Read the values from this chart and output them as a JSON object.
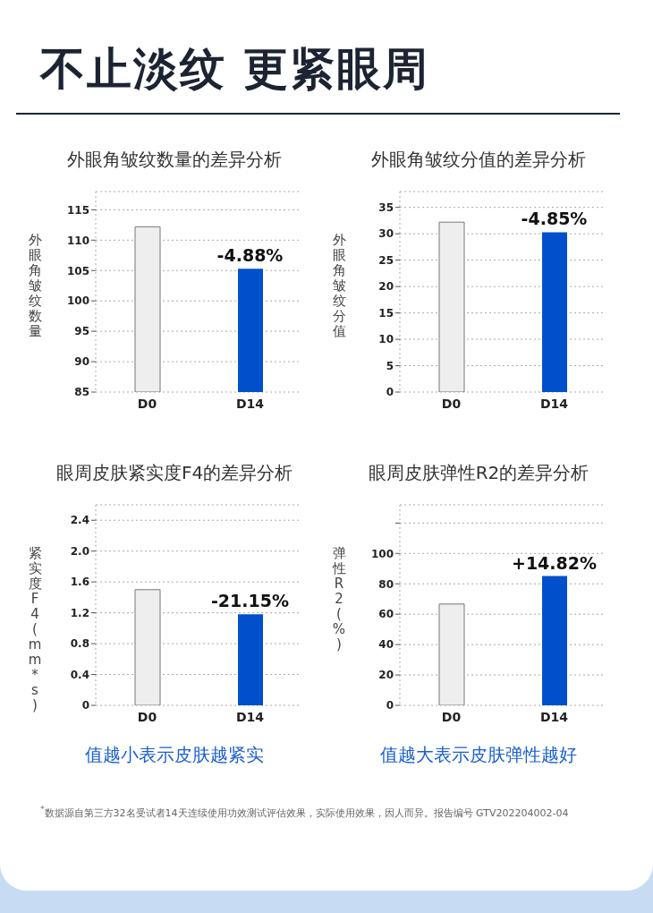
{
  "chart_data": [
    {
      "type": "other",
      "title": "不止淡纹 更紧眼周"
    },
    {
      "type": "bar",
      "title": "外眼角皱纹数量的差异分析",
      "ylabel": "外眼角皱纹数量",
      "categories": [
        "D0",
        "D14"
      ],
      "values": [
        112.2,
        105.3
      ],
      "colors": [
        "#eeeeee",
        "#0050cc"
      ],
      "annotations": [
        {
          "text": "-4.88%",
          "x": "D14",
          "y": 105.3
        }
      ],
      "ylim": [
        85,
        118
      ],
      "yticks": [
        85,
        90,
        95,
        100,
        105,
        110,
        115
      ],
      "grid": "y"
    },
    {
      "type": "bar",
      "title": "外眼角皱纹分值的差异分析",
      "ylabel": "外眼角皱纹分值",
      "categories": [
        "D0",
        "D14"
      ],
      "values": [
        32.2,
        30.3
      ],
      "colors": [
        "#eeeeee",
        "#0050cc"
      ],
      "annotations": [
        {
          "text": "-4.85%",
          "x": "D14",
          "y": 30.3
        }
      ],
      "ylim": [
        0,
        38
      ],
      "yticks": [
        0,
        5,
        10,
        15,
        20,
        25,
        30,
        35
      ],
      "grid": "y"
    },
    {
      "type": "bar",
      "title": "眼周皮肤紧实度F4的差异分析",
      "ylabel": "紧实度F4(mm*s)",
      "categories": [
        "D0",
        "D14"
      ],
      "values": [
        1.5,
        1.18
      ],
      "colors": [
        "#eeeeee",
        "#0050cc"
      ],
      "ylim": [
        0,
        2.6
      ],
      "yticks": [
        {
          "value": 0,
          "label": "0"
        },
        {
          "value": 0.4,
          "label": "0.4"
        },
        {
          "value": 0.8,
          "label": "0.8"
        },
        {
          "value": 1.2,
          "label": "1.2"
        },
        {
          "value": 1.6,
          "label": "1.6"
        },
        {
          "value": 2.0,
          "label": "2.0"
        },
        {
          "value": 2.4,
          "label": "2.4"
        }
      ],
      "grid": "y",
      "annotations": [
        {
          "text": "-21.15%",
          "x": "D14",
          "y": 1.18
        },
        "值越小表示皮肤越紧实"
      ]
    },
    {
      "type": "bar",
      "title": "眼周皮肤弹性R2的差异分析",
      "ylabel": "弹性R2(%)",
      "categories": [
        "D0",
        "D14"
      ],
      "values": [
        66.7,
        85.1
      ],
      "colors": [
        "#eeeeee",
        "#0050cc"
      ],
      "ylim": [
        0,
        132
      ],
      "yticks": [
        0,
        20,
        40,
        60,
        80,
        100,
        {
          "value": 120,
          "label": null
        }
      ],
      "grid": "y",
      "annotations": [
        {
          "text": "+14.82%",
          "x": "D14",
          "y": 85.1
        },
        "值越大表示皮肤弹性越好"
      ]
    },
    {
      "type": "other",
      "annotations": [
        "$^{*}$数据源自第三方32名受试者14天连续使用功效测试评估效果，实际使用效果，因人而异。报告编号 GTV202204002-04"
      ]
    }
  ]
}
